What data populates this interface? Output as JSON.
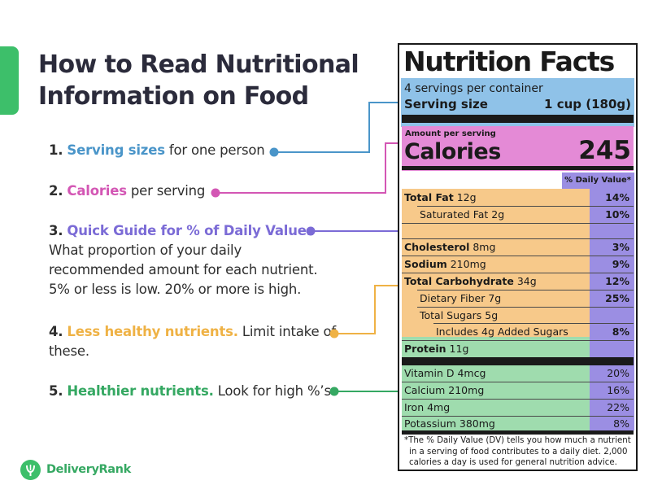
{
  "title": "How to Read Nutritional Information on Food",
  "steps": [
    {
      "num": "1.",
      "key": "Serving sizes",
      "rest": " for one person",
      "color": "#4a95c9"
    },
    {
      "num": "2.",
      "key": "Calories",
      "rest": " per serving",
      "color": "#d356b4"
    },
    {
      "num": "3.",
      "key": "Quick Guide for % of Daily Value.",
      "rest_lines": [
        "What proportion of your daily",
        "recommended amount for each nutrient.",
        "5% or less is low. 20% or more is high."
      ],
      "color": "#7b6bd6"
    },
    {
      "num": "4.",
      "key": "Less healthy nutrients.",
      "rest": " Limit intake of",
      "rest2": "these.",
      "color": "#efb245"
    },
    {
      "num": "5.",
      "key": "Healthier nutrients.",
      "rest": " Look for high %’s.",
      "color": "#35a862"
    }
  ],
  "label": {
    "title": "Nutrition Facts",
    "servings_per_container": "4 servings per container",
    "serving_size_label": "Serving size",
    "serving_size_value": "1 cup (180g)",
    "amount_per_serving": "Amount per serving",
    "calories_label": "Calories",
    "calories_value": "245",
    "dv_header": "% Daily Value*",
    "nutrients": [
      {
        "bold": "Total Fat",
        "rest": " 12g",
        "pct": "14%"
      },
      {
        "bold": "",
        "rest": "Saturated Fat 2g",
        "pct": "10%"
      },
      {
        "bold": "Cholesterol",
        "rest": " 8mg",
        "pct": "3%"
      },
      {
        "bold": "Sodium",
        "rest": " 210mg",
        "pct": "9%"
      },
      {
        "bold": "Total Carbohydrate",
        "rest": " 34g",
        "pct": "12%"
      },
      {
        "bold": "",
        "rest": "Dietary Fiber 7g",
        "pct": "25%"
      },
      {
        "bold": "",
        "rest": "Total Sugars 5g",
        "pct": ""
      },
      {
        "bold": "",
        "rest": "Includes 4g Added Sugars",
        "pct": "8%"
      },
      {
        "bold": "Protein",
        "rest": " 11g",
        "pct": ""
      }
    ],
    "vitamins": [
      {
        "name": "Vitamin D 4mcg",
        "pct": "20%"
      },
      {
        "name": "Calcium 210mg",
        "pct": "16%"
      },
      {
        "name": "Iron 4mg",
        "pct": "22%"
      },
      {
        "name": "Potassium 380mg",
        "pct": "8%"
      }
    ],
    "footnote_lines": [
      "*The % Daily Value (DV) tells you how much a nutrient",
      "in a serving of food contributes to a daily diet. 2,000",
      "calories a day is used for general nutrition advice."
    ]
  },
  "brand": "DeliveryRank",
  "colors": {
    "blue": "#8fc2e8",
    "pink": "#e48ad6",
    "purple": "#9b8ee3",
    "orange": "#f7c98a",
    "green": "#9fdcae",
    "brand_green": "#3dbf6a"
  }
}
